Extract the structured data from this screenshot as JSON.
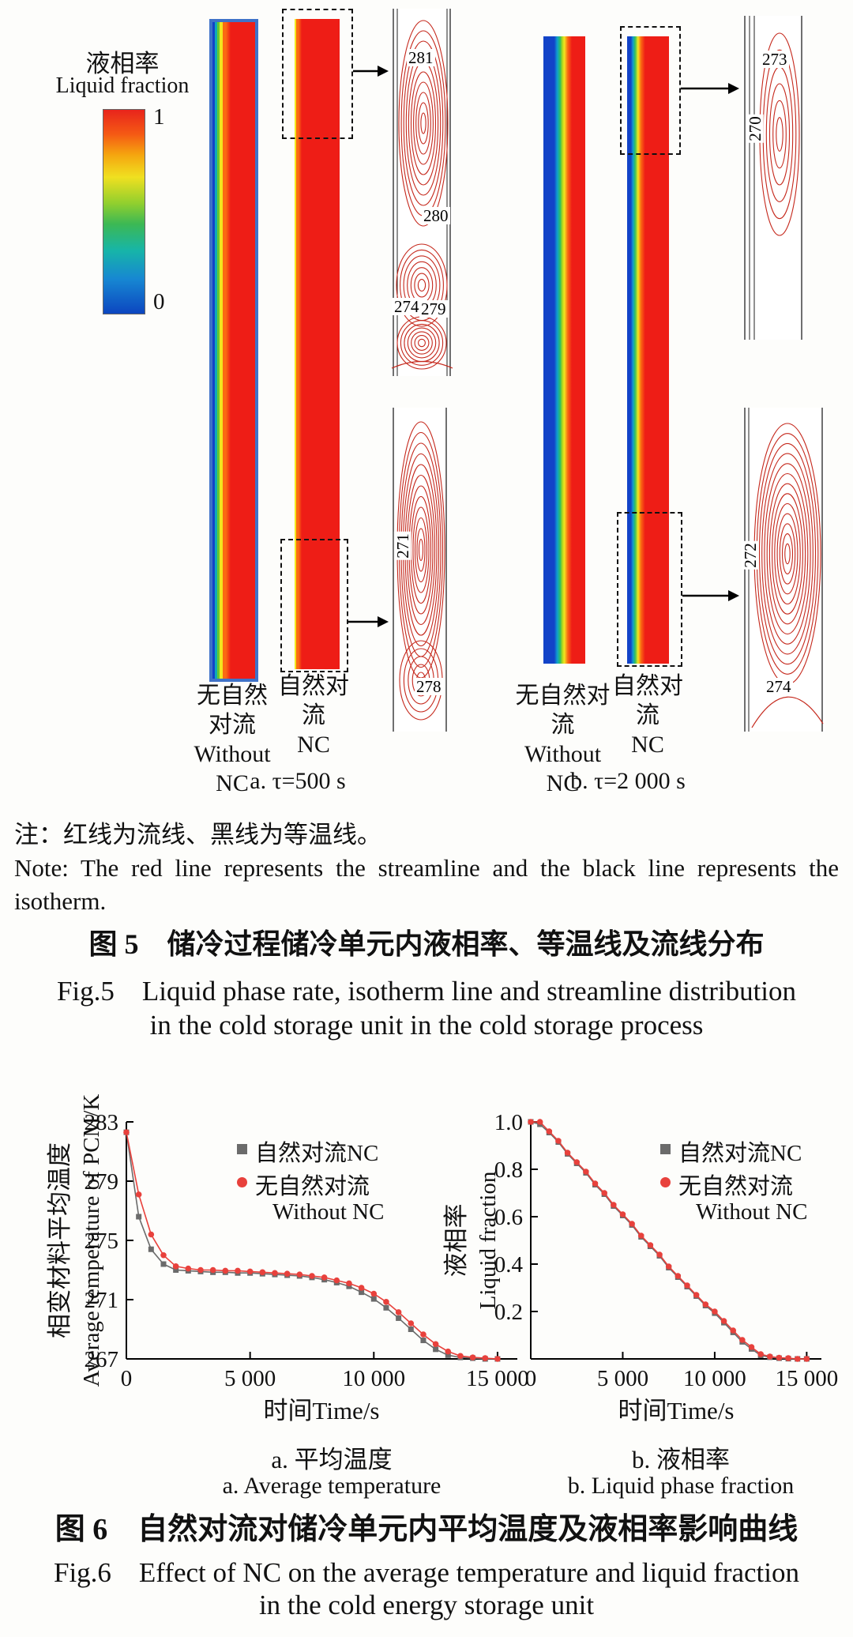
{
  "colorbar": {
    "title_zh": "液相率",
    "title_en": "Liquid fraction",
    "max_label": "1",
    "min_label": "0"
  },
  "fig5": {
    "panel_a": {
      "caption": "a. τ=500 s",
      "without_label": [
        "无自然",
        "对流",
        "Without",
        "NC"
      ],
      "nc_label": [
        "自然对流",
        "NC"
      ],
      "zoom_top": {
        "l281": "281",
        "l280": "280",
        "l274": "274",
        "l279": "279"
      },
      "zoom_bottom": {
        "l271": "271",
        "l278": "278"
      }
    },
    "panel_b": {
      "caption": "b. τ=2 000 s",
      "without_label": [
        "无自然对流",
        "Without",
        "NC"
      ],
      "nc_label": [
        "自然对流",
        "NC"
      ],
      "zoom_top": {
        "l273": "273",
        "l270": "270"
      },
      "zoom_bottom": {
        "l272": "272",
        "l274": "274"
      }
    },
    "note_zh": "注：红线为流线、黑线为等温线。",
    "note_en": "Note: The red line represents the streamline and the black line represents the isotherm.",
    "caption_zh": "图 5　储冷过程储冷单元内液相率、等温线及流线分布",
    "caption_en_line1": "Fig.5　Liquid phase rate, isotherm line and streamline distribution",
    "caption_en_line2": "in the cold storage unit in the cold storage process"
  },
  "fig6": {
    "legend": {
      "nc": "自然对流NC",
      "without_line1": "无自然对流",
      "without_line2": "Without NC"
    },
    "sub_a_zh": "a. 平均温度",
    "sub_a_en": "a. Average temperature",
    "sub_b_zh": "b. 液相率",
    "sub_b_en": "b. Liquid phase fraction",
    "caption_zh": "图 6　自然对流对储冷单元内平均温度及液相率影响曲线",
    "caption_en_line1": "Fig.6　Effect of NC on the average temperature and liquid fraction",
    "caption_en_line2": "in the cold energy storage unit"
  },
  "chart_data": [
    {
      "type": "line",
      "title": "a. 平均温度 / a. Average temperature",
      "xlabel": "时间Time/s",
      "ylabel_zh": "相变材料平均温度",
      "ylabel_en": "Average temperature of PCM/K",
      "xlim": [
        0,
        15800
      ],
      "ylim": [
        267,
        283
      ],
      "yticks": [
        267,
        271,
        275,
        279,
        283
      ],
      "ytick_labels": [
        "267",
        "271",
        "275",
        "279",
        "283"
      ],
      "xticks": [
        0,
        5000,
        10000,
        15000
      ],
      "xtick_labels": [
        "0",
        "5 000",
        "10 000",
        "15 000"
      ],
      "legend_position": "top-right",
      "grid": false,
      "series": [
        {
          "name": "自然对流NC",
          "color": "#6b6b6b",
          "marker": "square",
          "x": [
            0,
            500,
            1000,
            1500,
            2000,
            2500,
            3000,
            3500,
            4000,
            4500,
            5000,
            5500,
            6000,
            6500,
            7000,
            7500,
            8000,
            8500,
            9000,
            9500,
            10000,
            10500,
            11000,
            11500,
            12000,
            12500,
            13000,
            13500,
            14000,
            14500,
            15000
          ],
          "y": [
            282.3,
            276.6,
            274.4,
            273.4,
            273.0,
            272.95,
            272.9,
            272.85,
            272.85,
            272.8,
            272.8,
            272.75,
            272.7,
            272.65,
            272.6,
            272.5,
            272.35,
            272.15,
            271.9,
            271.5,
            271.05,
            270.45,
            269.75,
            269.0,
            268.25,
            267.65,
            267.25,
            267.1,
            267.05,
            267.0,
            267.0
          ]
        },
        {
          "name": "无自然对流 Without NC",
          "color": "#e8413c",
          "marker": "circle",
          "x": [
            0,
            500,
            1000,
            1500,
            2000,
            2500,
            3000,
            3500,
            4000,
            4500,
            5000,
            5500,
            6000,
            6500,
            7000,
            7500,
            8000,
            8500,
            9000,
            9500,
            10000,
            10500,
            11000,
            11500,
            12000,
            12500,
            13000,
            13500,
            14000,
            14500,
            15000
          ],
          "y": [
            282.3,
            278.1,
            275.4,
            274.0,
            273.25,
            273.1,
            273.0,
            273.0,
            272.95,
            272.95,
            272.9,
            272.85,
            272.8,
            272.75,
            272.7,
            272.6,
            272.5,
            272.3,
            272.1,
            271.8,
            271.4,
            270.85,
            270.15,
            269.4,
            268.65,
            268.0,
            267.5,
            267.2,
            267.1,
            267.05,
            267.0
          ]
        }
      ]
    },
    {
      "type": "line",
      "title": "b. 液相率 / b. Liquid phase fraction",
      "xlabel": "时间Time/s",
      "ylabel_zh": "液相率",
      "ylabel_en": "Liquid fraction",
      "xlim": [
        0,
        15800
      ],
      "ylim": [
        0,
        1.0
      ],
      "yticks": [
        0.2,
        0.4,
        0.6,
        0.8,
        1.0
      ],
      "ytick_labels": [
        "0.2",
        "0.4",
        "0.6",
        "0.8",
        "1.0"
      ],
      "xticks": [
        0,
        5000,
        10000,
        15000
      ],
      "xtick_labels": [
        "0",
        "5 000",
        "10 000",
        "15 000"
      ],
      "legend_position": "top-right",
      "grid": false,
      "series": [
        {
          "name": "自然对流NC",
          "color": "#6b6b6b",
          "marker": "square",
          "x": [
            0,
            500,
            1000,
            1500,
            2000,
            2500,
            3000,
            3500,
            4000,
            4500,
            5000,
            5500,
            6000,
            6500,
            7000,
            7500,
            8000,
            8500,
            9000,
            9500,
            10000,
            10500,
            11000,
            11500,
            12000,
            12500,
            13000,
            13500,
            14000,
            14500,
            15000
          ],
          "y": [
            1.0,
            0.99,
            0.955,
            0.915,
            0.865,
            0.825,
            0.785,
            0.735,
            0.695,
            0.645,
            0.605,
            0.565,
            0.515,
            0.475,
            0.435,
            0.385,
            0.345,
            0.305,
            0.265,
            0.225,
            0.193,
            0.153,
            0.112,
            0.072,
            0.042,
            0.015,
            0.007,
            0.003,
            0.001,
            0.0,
            0.0
          ]
        },
        {
          "name": "无自然对流 Without NC",
          "color": "#e8413c",
          "marker": "circle",
          "x": [
            0,
            500,
            1000,
            1500,
            2000,
            2500,
            3000,
            3500,
            4000,
            4500,
            5000,
            5500,
            6000,
            6500,
            7000,
            7500,
            8000,
            8500,
            9000,
            9500,
            10000,
            10500,
            11000,
            11500,
            12000,
            12500,
            13000,
            13500,
            14000,
            14500,
            15000
          ],
          "y": [
            1.0,
            1.0,
            0.96,
            0.92,
            0.87,
            0.83,
            0.79,
            0.74,
            0.7,
            0.65,
            0.61,
            0.57,
            0.52,
            0.48,
            0.44,
            0.39,
            0.35,
            0.31,
            0.27,
            0.23,
            0.2,
            0.16,
            0.12,
            0.08,
            0.05,
            0.02,
            0.01,
            0.005,
            0.003,
            0.0,
            0.0
          ]
        }
      ]
    }
  ]
}
